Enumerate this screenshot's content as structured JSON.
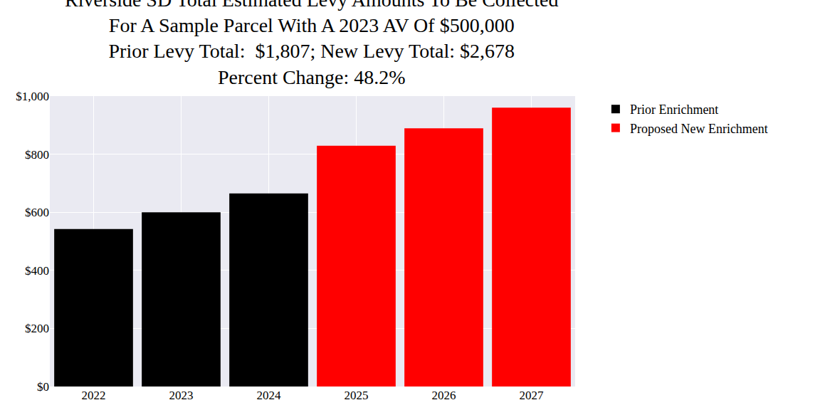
{
  "chart_data": {
    "type": "bar",
    "title": "Riverside SD Total Estimated Levy Amounts To Be Collected\nFor A Sample Parcel With A 2023 AV Of $500,000",
    "subtitle": "Prior Levy Total:  $1,807; New Levy Total: $2,678\nPercent Change: 48.2%",
    "categories": [
      "2022",
      "2023",
      "2024",
      "2025",
      "2026",
      "2027"
    ],
    "series": [
      {
        "name": "Prior Enrichment",
        "color": "#000000",
        "values": [
          542,
          600,
          665,
          null,
          null,
          null
        ]
      },
      {
        "name": "Proposed New Enrichment",
        "color": "#ff0000",
        "values": [
          null,
          null,
          null,
          829,
          889,
          960
        ]
      }
    ],
    "ylim": [
      0,
      1000
    ],
    "yticks": [
      {
        "value": 0,
        "label": "$0"
      },
      {
        "value": 200,
        "label": "$200"
      },
      {
        "value": 400,
        "label": "$400"
      },
      {
        "value": 600,
        "label": "$600"
      },
      {
        "value": 800,
        "label": "$800"
      },
      {
        "value": 1000,
        "label": "$1,000"
      }
    ],
    "grid": true,
    "legend": "outside upper right"
  }
}
